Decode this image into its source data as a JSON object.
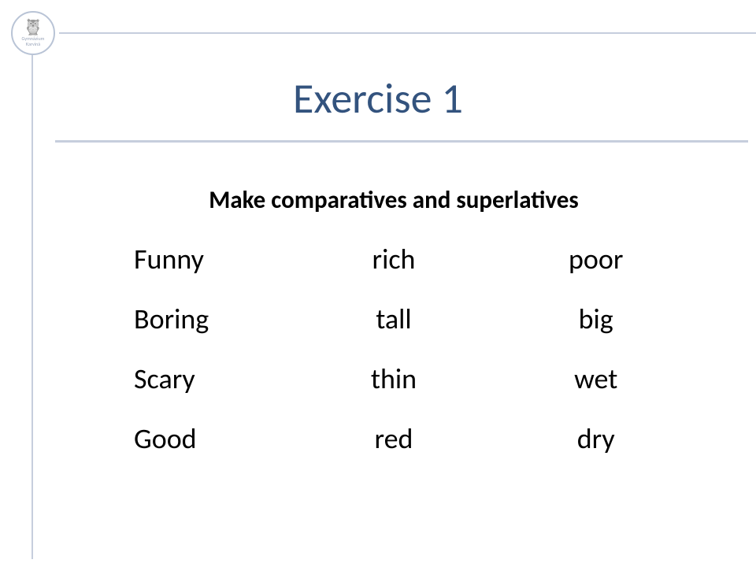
{
  "logo": {
    "owl_glyph": "🦉",
    "line1": "Gymnázium",
    "line2": "Karviná"
  },
  "title": "Exercise 1",
  "instruction": "Make comparatives and superlatives",
  "words": {
    "row1": {
      "c1": "Funny",
      "c2": "rich",
      "c3": "poor"
    },
    "row2": {
      "c1": "Boring",
      "c2": "tall",
      "c3": "big"
    },
    "row3": {
      "c1": "Scary",
      "c2": "thin",
      "c3": "wet"
    },
    "row4": {
      "c1": "Good",
      "c2": "red",
      "c3": "dry"
    }
  },
  "colors": {
    "title": "#33537e",
    "rule": "#c6cedd",
    "text": "#000000",
    "bg": "#ffffff"
  },
  "typography": {
    "title_fontsize": 54,
    "instruction_fontsize": 31,
    "word_fontsize": 36,
    "font_family": "Calibri"
  }
}
